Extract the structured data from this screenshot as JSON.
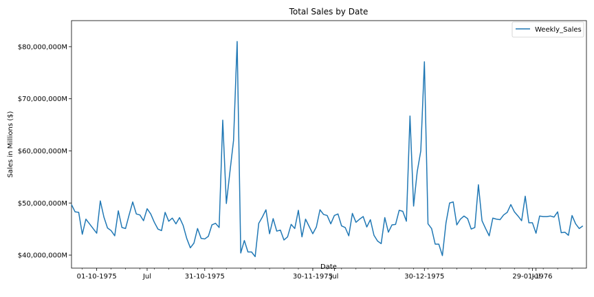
{
  "chart_data": {
    "type": "line",
    "title": "Total Sales by Date",
    "xlabel": "Date",
    "ylabel": "Sales in Millions ($)",
    "ylim": [
      37500000,
      85000000
    ],
    "xlim": [
      0,
      143
    ],
    "yticks": [
      40000000,
      50000000,
      60000000,
      70000000,
      80000000
    ],
    "ytick_labels": [
      "$40,000,000M",
      "$50,000,000M",
      "$60,000,000M",
      "$70,000,000M",
      "$80,000,000M"
    ],
    "xticks": [
      {
        "pos": 7,
        "label": "01-10-1975"
      },
      {
        "pos": 21,
        "label": "Jul"
      },
      {
        "pos": 37,
        "label": "31-10-1975"
      },
      {
        "pos": 67,
        "label": "30-11-1975"
      },
      {
        "pos": 73,
        "label": "Jul"
      },
      {
        "pos": 98,
        "label": "30-12-1975"
      },
      {
        "pos": 128,
        "label": "29-01-1976"
      },
      {
        "pos": 129,
        "label": "Jul"
      }
    ],
    "minor_tick_step": 4,
    "grid": false,
    "legend": {
      "position": "top-right",
      "entries": [
        "Weekly_Sales"
      ]
    },
    "series": [
      {
        "name": "Weekly_Sales",
        "color": "#1f77b4",
        "values": [
          49700000,
          48300000,
          48200000,
          44000000,
          46900000,
          46000000,
          45100000,
          44200000,
          50400000,
          47300000,
          45200000,
          44700000,
          43700000,
          48500000,
          45300000,
          45100000,
          47700000,
          50200000,
          47900000,
          47700000,
          46600000,
          48900000,
          47900000,
          46300000,
          45000000,
          44700000,
          48200000,
          46500000,
          47100000,
          46000000,
          47200000,
          45700000,
          43200000,
          41400000,
          42300000,
          45100000,
          43200000,
          43100000,
          43600000,
          45800000,
          46100000,
          45300000,
          65900000,
          49900000,
          56000000,
          62000000,
          81000000,
          40400000,
          42800000,
          40600000,
          40600000,
          39700000,
          46100000,
          47300000,
          48700000,
          44100000,
          47000000,
          44600000,
          44800000,
          42900000,
          43500000,
          45900000,
          45100000,
          48600000,
          43500000,
          46900000,
          45500000,
          44100000,
          45400000,
          48700000,
          47800000,
          47600000,
          46000000,
          47600000,
          47900000,
          45600000,
          45300000,
          43700000,
          48000000,
          46300000,
          46900000,
          47400000,
          45400000,
          46800000,
          43800000,
          42700000,
          42200000,
          47200000,
          44400000,
          45800000,
          45900000,
          48600000,
          48400000,
          46500000,
          66700000,
          49400000,
          56000000,
          60000000,
          77100000,
          46000000,
          45100000,
          42100000,
          42100000,
          39900000,
          46200000,
          50000000,
          50200000,
          45800000,
          46900000,
          47500000,
          47000000,
          45000000,
          45300000,
          53500000,
          46600000,
          45100000,
          43700000,
          47100000,
          46900000,
          46800000,
          47700000,
          48200000,
          49700000,
          48300000,
          47500000,
          46600000,
          51300000,
          46200000,
          46200000,
          44200000,
          47500000,
          47400000,
          47400000,
          47500000,
          47300000,
          48300000,
          44300000,
          44400000,
          43800000,
          47600000,
          46000000,
          45100000,
          45600000
        ]
      }
    ]
  }
}
